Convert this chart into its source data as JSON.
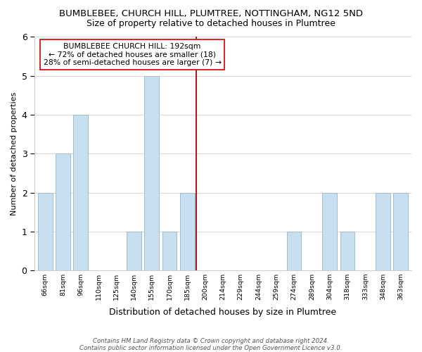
{
  "title": "BUMBLEBEE, CHURCH HILL, PLUMTREE, NOTTINGHAM, NG12 5ND",
  "subtitle": "Size of property relative to detached houses in Plumtree",
  "xlabel": "Distribution of detached houses by size in Plumtree",
  "ylabel": "Number of detached properties",
  "bin_labels": [
    "66sqm",
    "81sqm",
    "96sqm",
    "110sqm",
    "125sqm",
    "140sqm",
    "155sqm",
    "170sqm",
    "185sqm",
    "200sqm",
    "214sqm",
    "229sqm",
    "244sqm",
    "259sqm",
    "274sqm",
    "289sqm",
    "304sqm",
    "318sqm",
    "333sqm",
    "348sqm",
    "363sqm"
  ],
  "counts": [
    2,
    3,
    4,
    0,
    0,
    1,
    5,
    1,
    2,
    0,
    0,
    0,
    0,
    0,
    1,
    0,
    2,
    1,
    0,
    2,
    2
  ],
  "bar_color": "#c8dff0",
  "bar_edge_color": "#9bbdd6",
  "vline_color": "#aa0000",
  "annotation_title": "BUMBLEBEE CHURCH HILL: 192sqm",
  "annotation_line2": "← 72% of detached houses are smaller (18)",
  "annotation_line3": "28% of semi-detached houses are larger (7) →",
  "ylim": [
    0,
    6
  ],
  "yticks": [
    0,
    1,
    2,
    3,
    4,
    5,
    6
  ],
  "title_fontsize": 9.5,
  "subtitle_fontsize": 9,
  "footer1": "Contains HM Land Registry data © Crown copyright and database right 2024.",
  "footer2": "Contains public sector information licensed under the Open Government Licence v3.0."
}
